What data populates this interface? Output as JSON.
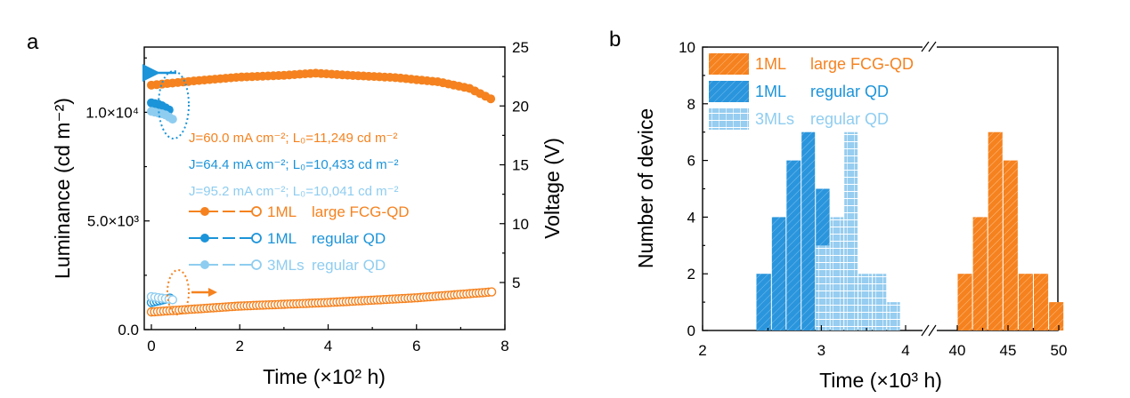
{
  "colors": {
    "orange": "#f5821f",
    "blue": "#1c94d9",
    "light_blue": "#8fcdf0",
    "orange_fill": "#f5821f",
    "blue_fill": "#2a95dc",
    "light_blue_fill": "#96cdf0"
  },
  "panels": {
    "a_label": "a",
    "b_label": "b"
  },
  "chart_data": [
    {
      "type": "scatter",
      "panel": "a",
      "xlabel": "Time (×10² h)",
      "ylabel_left": "Luminance (cd m⁻²)",
      "ylabel_right": "Voltage (V)",
      "xlim": [
        0,
        8
      ],
      "ylim_left": [
        0,
        13000
      ],
      "ylim_right": [
        1,
        25
      ],
      "x_ticks": [
        "0",
        "2",
        "4",
        "6",
        "8"
      ],
      "y_left_ticks": [
        "0.0",
        "5.0×10³",
        "1.0×10⁴"
      ],
      "y_right_ticks": [
        "5",
        "10",
        "15",
        "20",
        "25"
      ],
      "annotations": [
        {
          "text": "J=60.0 mA cm⁻²; L₀=11,249 cd m⁻²",
          "color": "orange"
        },
        {
          "text": "J=64.4 mA cm⁻²; L₀=10,433 cd m⁻²",
          "color": "blue"
        },
        {
          "text": "J=95.2 mA cm⁻²; L₀=10,041 cd m⁻²",
          "color": "light_blue"
        }
      ],
      "legend": [
        {
          "label_a": "1ML",
          "label_b": "large FCG-QD",
          "color": "orange"
        },
        {
          "label_a": "1ML",
          "label_b": "regular QD",
          "color": "blue"
        },
        {
          "label_a": "3MLs",
          "label_b": "regular QD",
          "color": "light_blue"
        }
      ],
      "series": [
        {
          "name": "1ML large FCG-QD",
          "color": "orange",
          "luminance": {
            "x_start": 0,
            "x_end": 7.7,
            "y_points": [
              [
                0,
                11249
              ],
              [
                1,
                11450
              ],
              [
                2,
                11620
              ],
              [
                3,
                11700
              ],
              [
                3.7,
                11800
              ],
              [
                4.5,
                11700
              ],
              [
                5.5,
                11600
              ],
              [
                6.5,
                11400
              ],
              [
                7.2,
                11100
              ],
              [
                7.7,
                10600
              ]
            ]
          },
          "voltage": {
            "x_start": 0,
            "x_end": 7.7,
            "y_points": [
              [
                0,
                2.5
              ],
              [
                2,
                3.0
              ],
              [
                4,
                3.3
              ],
              [
                6,
                3.7
              ],
              [
                7.7,
                4.2
              ]
            ]
          }
        },
        {
          "name": "1ML regular QD",
          "color": "blue",
          "luminance": {
            "x_start": 0,
            "x_end": 0.45,
            "y_points": [
              [
                0,
                10433
              ],
              [
                0.2,
                10350
              ],
              [
                0.45,
                10050
              ]
            ]
          },
          "voltage": {
            "x_start": 0,
            "x_end": 0.45,
            "y_points": [
              [
                0,
                3.3
              ],
              [
                0.45,
                3.7
              ]
            ]
          }
        },
        {
          "name": "3MLs regular QD",
          "color": "light_blue",
          "luminance": {
            "x_start": 0,
            "x_end": 0.55,
            "y_points": [
              [
                0,
                10041
              ],
              [
                0.3,
                9900
              ],
              [
                0.55,
                9600
              ]
            ]
          },
          "voltage": {
            "x_start": 0,
            "x_end": 0.55,
            "y_points": [
              [
                0,
                3.8
              ],
              [
                0.55,
                3.5
              ]
            ]
          }
        }
      ]
    },
    {
      "type": "bar",
      "panel": "b",
      "xlabel": "Time (×10³ h)",
      "ylabel": "Number of device",
      "ylim": [
        0,
        10
      ],
      "y_ticks": [
        "0",
        "2",
        "4",
        "6",
        "8",
        "10"
      ],
      "x_ticks_left": [
        "2",
        "3",
        "4"
      ],
      "x_ticks_right": [
        "40",
        "45",
        "50"
      ],
      "x_scale_left": "log",
      "legend": [
        {
          "label_a": "1ML",
          "label_b": "large FCG-QD",
          "color": "orange"
        },
        {
          "label_a": "1ML",
          "label_b": "regular QD",
          "color": "blue"
        },
        {
          "label_a": "3MLs",
          "label_b": "regular QD",
          "color": "light_blue"
        }
      ],
      "series": [
        {
          "name": "1ML regular QD",
          "color": "blue",
          "bins": [
            [
              2.4,
              2.53,
              2
            ],
            [
              2.53,
              2.66,
              4
            ],
            [
              2.66,
              2.8,
              6
            ],
            [
              2.8,
              2.94,
              7
            ],
            [
              2.94,
              3.09,
              5
            ]
          ]
        },
        {
          "name": "3MLs regular QD",
          "color": "light_blue",
          "bins": [
            [
              2.94,
              3.09,
              3
            ],
            [
              3.09,
              3.24,
              4
            ],
            [
              3.24,
              3.4,
              7
            ],
            [
              3.4,
              3.57,
              2
            ],
            [
              3.57,
              3.75,
              2
            ],
            [
              3.75,
              3.93,
              1
            ]
          ]
        },
        {
          "name": "1ML large FCG-QD",
          "color": "orange",
          "bins": [
            [
              40,
              41.5,
              2
            ],
            [
              41.5,
              43,
              4
            ],
            [
              43,
              44.5,
              7
            ],
            [
              44.5,
              46,
              6
            ],
            [
              46,
              47.5,
              2
            ],
            [
              47.5,
              49,
              2
            ],
            [
              49,
              50.5,
              1
            ]
          ]
        }
      ]
    }
  ]
}
